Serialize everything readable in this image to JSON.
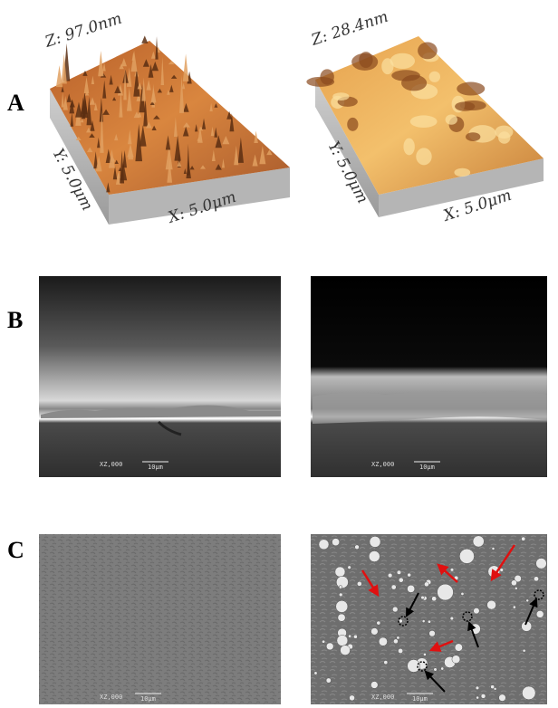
{
  "panels": [
    {
      "label": "A",
      "images": [
        {
          "z_label": "Z: 97.0nm",
          "y_label": "Y: 5.0μm",
          "x_label": "X: 5.0μm"
        },
        {
          "z_label": "Z: 28.4nm",
          "y_label": "Y: 5.0μm",
          "x_label": "X: 5.0μm"
        }
      ]
    },
    {
      "label": "B",
      "images": [
        {
          "scale_info": "XZ,000",
          "scale_length": "10μm"
        },
        {
          "scale_info": "XZ,000",
          "scale_length": "10μm"
        }
      ]
    },
    {
      "label": "C",
      "images": [
        {
          "scale_info": "XZ,000",
          "scale_length": "10μm"
        },
        {
          "scale_info": "XZ,000",
          "scale_length": "10μm"
        }
      ]
    }
  ]
}
